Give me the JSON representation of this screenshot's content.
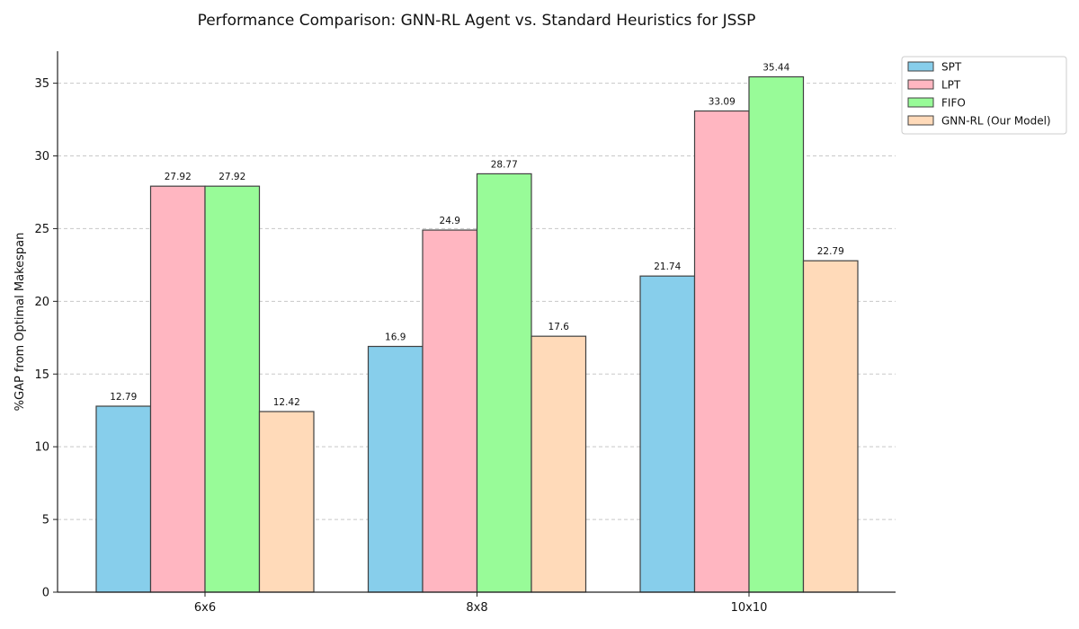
{
  "chart_data": {
    "type": "bar",
    "title": "Performance Comparison: GNN-RL Agent vs. Standard Heuristics for JSSP",
    "xlabel": "",
    "ylabel": "%GAP from Optimal Makespan",
    "categories": [
      "6x6",
      "8x8",
      "10x10"
    ],
    "ylim": [
      0,
      37.2
    ],
    "yticks": [
      0,
      5,
      10,
      15,
      20,
      25,
      30,
      35
    ],
    "grid": "horizontal dashed",
    "legend_position": "upper right, outside plot",
    "series": [
      {
        "name": "SPT",
        "values": [
          12.79,
          16.9,
          21.74
        ],
        "color": "#87CEEB"
      },
      {
        "name": "LPT",
        "values": [
          27.92,
          24.9,
          33.09
        ],
        "color": "#FFB6C1"
      },
      {
        "name": "FIFO",
        "values": [
          27.92,
          28.77,
          35.44
        ],
        "color": "#98FB98"
      },
      {
        "name": "GNN-RL (Our Model)",
        "values": [
          12.42,
          17.6,
          22.79
        ],
        "color": "#FFDAB9"
      }
    ],
    "bar_edge_color": "#404040"
  }
}
